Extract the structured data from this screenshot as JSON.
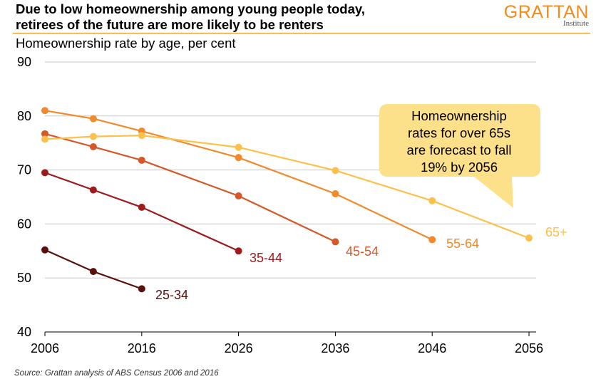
{
  "header": {
    "title_line1": "Due to low homeownership among young people today,",
    "title_line2": "retirees of the future are more likely to be renters",
    "brand_name": "GRATTAN",
    "brand_sub": "Institute",
    "brand_color": "#f28a1c"
  },
  "subtitle": "Homeownership rate by age, per cent",
  "source": "Source: Grattan analysis of ABS Census 2006 and 2016",
  "callout": {
    "line1": "Homeownership",
    "line2": "rates for over 65s",
    "line3": "are forecast to fall",
    "line4": "19% by 2056",
    "fill": "#fde08a"
  },
  "chart_data": {
    "type": "line",
    "x_ticks": [
      2006,
      2016,
      2026,
      2036,
      2046,
      2056
    ],
    "xlim": [
      2006,
      2056
    ],
    "ylim": [
      40,
      90
    ],
    "y_ticks": [
      40,
      50,
      60,
      70,
      80,
      90
    ],
    "grid": "horizontal",
    "series": [
      {
        "name": "25-34",
        "color": "#5a0f0f",
        "x": [
          2006,
          2011,
          2016
        ],
        "y": [
          55.2,
          51.2,
          48.0
        ]
      },
      {
        "name": "35-44",
        "color": "#9b1b1e",
        "x": [
          2006,
          2011,
          2016,
          2026
        ],
        "y": [
          69.5,
          66.3,
          63.1,
          55.0
        ]
      },
      {
        "name": "45-54",
        "color": "#d4582a",
        "x": [
          2006,
          2011,
          2016,
          2026,
          2036
        ],
        "y": [
          76.7,
          74.3,
          71.8,
          65.2,
          56.7
        ]
      },
      {
        "name": "55-64",
        "color": "#f08a2c",
        "x": [
          2006,
          2011,
          2016,
          2026,
          2036,
          2046
        ],
        "y": [
          81.0,
          79.5,
          77.2,
          72.3,
          65.6,
          57.1
        ]
      },
      {
        "name": "65+",
        "color": "#fbc14b",
        "x": [
          2006,
          2011,
          2016,
          2026,
          2036,
          2046,
          2056
        ],
        "y": [
          75.7,
          76.2,
          76.4,
          74.2,
          69.9,
          64.3,
          57.4
        ]
      }
    ]
  }
}
